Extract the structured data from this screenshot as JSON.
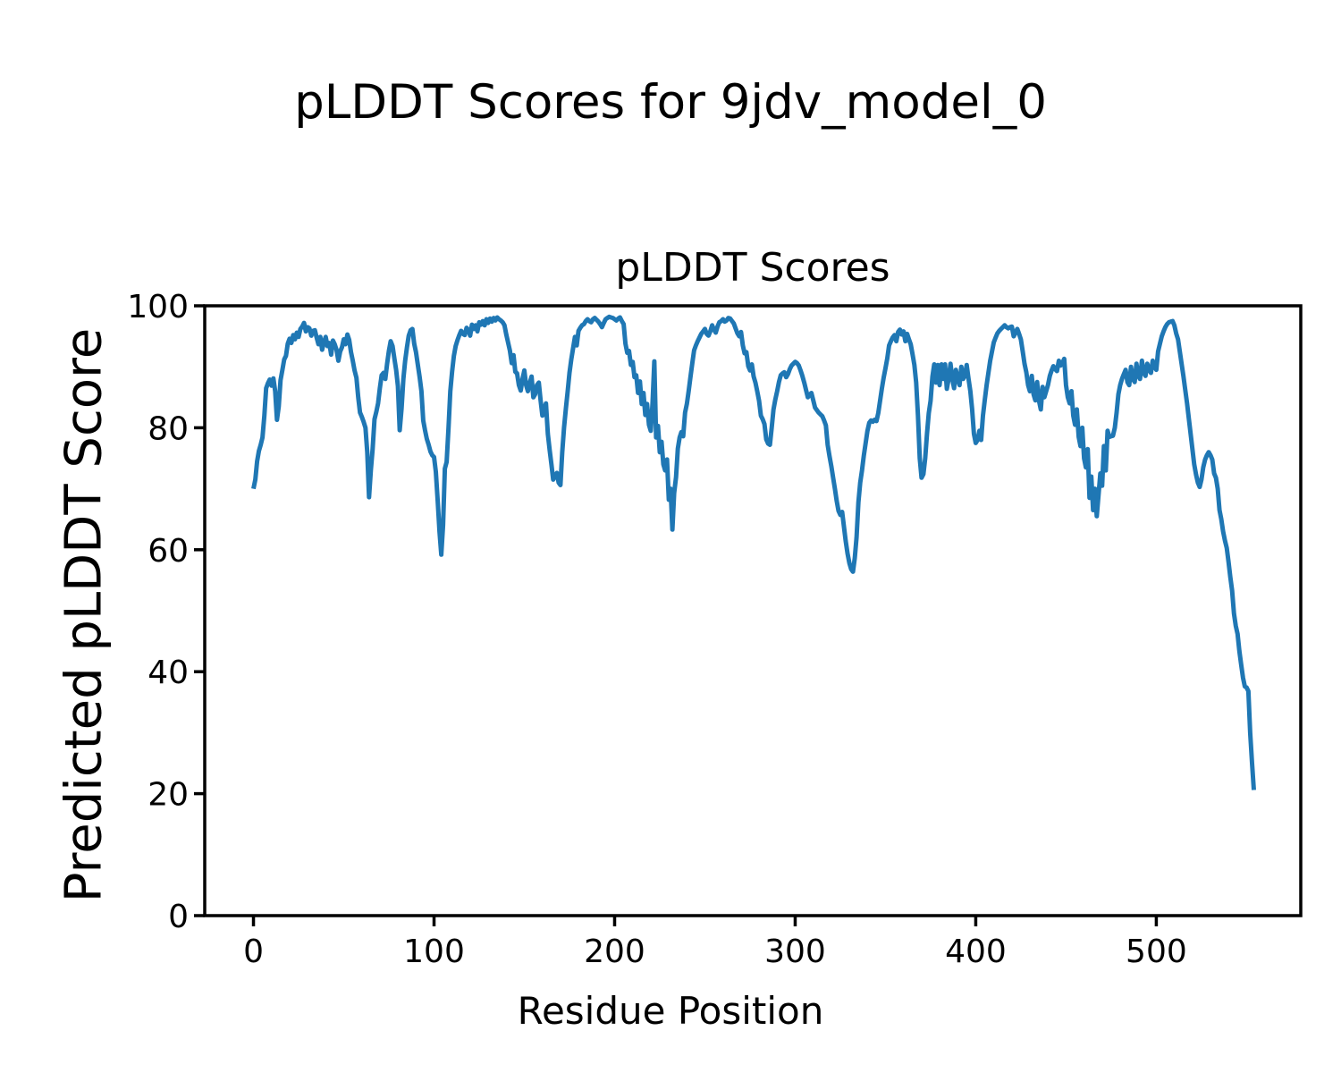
{
  "figure": {
    "suptitle": "pLDDT Scores for 9jdv_model_0",
    "background_color": "#ffffff",
    "text_color": "#000000"
  },
  "chart_data": {
    "type": "line",
    "title": "pLDDT Scores",
    "xlabel": "Residue Position",
    "ylabel": "Predicted pLDDT Score",
    "xlim": [
      -27,
      580
    ],
    "ylim": [
      0,
      100
    ],
    "xticks": [
      0,
      100,
      200,
      300,
      400,
      500
    ],
    "yticks": [
      0,
      20,
      40,
      60,
      80,
      100
    ],
    "grid": false,
    "legend": "none",
    "line_color": "#1f77b4",
    "line_width": 5,
    "axis_color": "#000000",
    "x_start": 0,
    "x_step": 1,
    "values": [
      70,
      71.5,
      74.5,
      76.2,
      77.2,
      78.4,
      82,
      86.5,
      87.3,
      87.9,
      86.9,
      88.1,
      86,
      81.3,
      83.5,
      87.8,
      89.5,
      91.2,
      91.8,
      93.8,
      94.6,
      93.9,
      95.2,
      94.5,
      95.6,
      94.9,
      96.2,
      96.6,
      97.2,
      95.8,
      96.5,
      96.3,
      95.1,
      95.9,
      96,
      94.8,
      93.7,
      94.9,
      92.8,
      94,
      94.9,
      93.4,
      93.9,
      92,
      94.3,
      93.7,
      92.8,
      91,
      92.5,
      93.2,
      94.5,
      93.7,
      95.3,
      94.4,
      92.4,
      91,
      89.4,
      88.2,
      85,
      82.5,
      81.8,
      81,
      80,
      76,
      68.6,
      73,
      76.5,
      81.4,
      82.6,
      84,
      86.5,
      88.6,
      89,
      88,
      90.5,
      92.6,
      94.2,
      93.4,
      91.4,
      89.5,
      86.8,
      79.6,
      83.2,
      88,
      91,
      93.2,
      95.1,
      96,
      96.2,
      93.8,
      92.4,
      90.4,
      88.3,
      86,
      81.2,
      79.6,
      78.2,
      77.2,
      76.1,
      75.5,
      75.2,
      72.8,
      68,
      63,
      59.2,
      64,
      73.3,
      74.4,
      80,
      86,
      89.2,
      91.8,
      93.4,
      94.4,
      95.2,
      95.9,
      95.4,
      95.2,
      96.4,
      96,
      95.1,
      96.9,
      96.2,
      96.8,
      95.8,
      97.3,
      96.9,
      97.5,
      96.8,
      97.8,
      97.2,
      97.9,
      97.4,
      98,
      97.6,
      98.1,
      97.8,
      97.6,
      97.3,
      96.8,
      95.3,
      94,
      92.7,
      90.6,
      91.9,
      89.2,
      88.9,
      87,
      86.1,
      88,
      89.4,
      87,
      86,
      87.4,
      88.4,
      85,
      85.5,
      87,
      87.4,
      84.5,
      82,
      83.1,
      84,
      79,
      76.4,
      74,
      71.5,
      72.1,
      72.6,
      71,
      70.6,
      76,
      80,
      83.2,
      86,
      89,
      91.2,
      93,
      94.9,
      93.5,
      95.9,
      96.4,
      96.8,
      97,
      97.5,
      97.8,
      97.5,
      97.3,
      97.8,
      98,
      97.7,
      97.4,
      97,
      96.5,
      97.2,
      97.8,
      98,
      98.2,
      98.1,
      98,
      97.8,
      97.6,
      97.9,
      98.1,
      97.5,
      97,
      93.8,
      92.3,
      92.6,
      90.3,
      90.8,
      88.3,
      88.6,
      85.7,
      87.6,
      83.9,
      85.7,
      82.1,
      83.9,
      80.5,
      79.5,
      84,
      90.9,
      78.4,
      80.3,
      76,
      77.7,
      74,
      73,
      74.8,
      68.2,
      70,
      63.3,
      69.3,
      71.9,
      76.6,
      78.4,
      79.3,
      78.6,
      82.5,
      83.9,
      86,
      88.3,
      90.5,
      92.7,
      93.5,
      94.2,
      94.8,
      95.4,
      95.8,
      96.2,
      95.4,
      95.1,
      95.8,
      96.8,
      96.1,
      95.6,
      96.6,
      97.3,
      97.5,
      97.8,
      97.4,
      97.6,
      98,
      97.9,
      97.5,
      97.1,
      96.3,
      95.5,
      95,
      95.7,
      93.5,
      92.2,
      92.4,
      90.1,
      89.4,
      90.4,
      88.4,
      87.4,
      86,
      84.4,
      82,
      81.4,
      80.6,
      78.1,
      77.4,
      77.2,
      80,
      83,
      84.6,
      86,
      87.5,
      88.6,
      88.9,
      89.1,
      88.3,
      88.8,
      89.6,
      90.2,
      90.5,
      90.8,
      90.6,
      90.2,
      89.4,
      88.5,
      87.4,
      86.2,
      85,
      85.4,
      85.7,
      84.5,
      83.3,
      82.9,
      82.5,
      82.2,
      81.9,
      81.2,
      80.4,
      77.2,
      75.4,
      73.7,
      71.8,
      70,
      68,
      66.4,
      65.7,
      66.2,
      63.8,
      61.4,
      59.4,
      57.8,
      56.8,
      56.4,
      58.6,
      62,
      67.8,
      71,
      73,
      75.4,
      77.4,
      79.5,
      80.8,
      81.2,
      81,
      81.3,
      81.1,
      82.4,
      84.4,
      86.4,
      88.2,
      89.8,
      91.4,
      93.5,
      94.2,
      94.8,
      95.2,
      94.2,
      95.7,
      96.1,
      95.3,
      95.8,
      94.2,
      95.4,
      94.5,
      93.7,
      92.1,
      90.3,
      87.4,
      82,
      75,
      71.8,
      72.4,
      75,
      79,
      82.4,
      84.4,
      88.4,
      90.4,
      87.4,
      90.3,
      87,
      90.4,
      88,
      90.4,
      86.4,
      88,
      90.5,
      88,
      86.5,
      89.5,
      88,
      87,
      90,
      88,
      88.5,
      90.3,
      88,
      86,
      83,
      79,
      77.5,
      78,
      79.5,
      78,
      82,
      84.5,
      87,
      89,
      91,
      92.5,
      94,
      94.8,
      95.5,
      95.9,
      96.2,
      96.5,
      96.8,
      96.5,
      96.3,
      96.5,
      96.6,
      95,
      95.6,
      96.2,
      95.4,
      94.5,
      92.5,
      90.5,
      89.1,
      87,
      86,
      88.5,
      85.5,
      84.5,
      87.5,
      84.5,
      83,
      86.7,
      85,
      86,
      87,
      88.5,
      89.4,
      90.1,
      89.6,
      89.3,
      91,
      90.2,
      90.6,
      91.3,
      87,
      85,
      84,
      86,
      82,
      80.5,
      83,
      78.5,
      77,
      80,
      75,
      73.5,
      76.5,
      68.5,
      72,
      66.5,
      70,
      65.5,
      69,
      72.5,
      70.5,
      77,
      73,
      79.5,
      78.5,
      78.6,
      78.7,
      80,
      82.5,
      85.5,
      87,
      88,
      88.8,
      89.5,
      87.5,
      87,
      90,
      88,
      87.5,
      90.5,
      88.5,
      88,
      91,
      89,
      88.5,
      90.5,
      89.5,
      89,
      91,
      90,
      89.5,
      92.5,
      93.8,
      95,
      95.8,
      96.5,
      97,
      97.3,
      97.4,
      97.5,
      96.8,
      95.5,
      94.5,
      92.5,
      90.5,
      88.5,
      86.3,
      84,
      81.5,
      79,
      76.5,
      74,
      72.3,
      71,
      70.3,
      71.5,
      73.5,
      74.8,
      75.5,
      76,
      75.5,
      74.8,
      72.5,
      71.8,
      70,
      66.5,
      65,
      63,
      61.5,
      60.3,
      58,
      55.5,
      53.3,
      49.5,
      47.5,
      46.2,
      43.4,
      41.2,
      39,
      37.6,
      37.4,
      36.8,
      30,
      25,
      20.6
    ]
  }
}
